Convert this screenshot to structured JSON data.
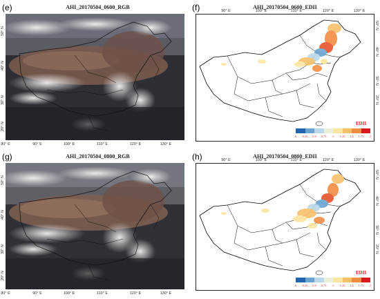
{
  "panels": {
    "e": {
      "label": "(e)",
      "title": "AHI_20170504_0600_RGB",
      "kind": "rgb"
    },
    "f": {
      "label": "(f)",
      "title": "AHI_20170504_0600_EDII",
      "kind": "edii"
    },
    "g": {
      "label": "(g)",
      "title": "AHI_20170504_0800_RGB",
      "kind": "rgb"
    },
    "h": {
      "label": "(h)",
      "title": "AHI_20170504_0800_EDII",
      "kind": "edii"
    }
  },
  "axes": {
    "rgb_lon_ticks": [
      "80° E",
      "90° E",
      "100° E",
      "110° E",
      "120° E",
      "130° E"
    ],
    "edii_lon_ticks": [
      "90° E",
      "100° E",
      "110° E",
      "120° E",
      "130° E"
    ],
    "lat_ticks": [
      "20° N",
      "30° N",
      "40° N",
      "50° N"
    ]
  },
  "legend": {
    "title": "EDII",
    "ticks": [
      "0",
      "0.25",
      "0.5",
      "0.75",
      "1",
      "1.25",
      "1.5",
      "1.75",
      "2"
    ],
    "colors": [
      "#2166ac",
      "#6aa4d1",
      "#b9d8ea",
      "#e9f2d8",
      "#fde6a0",
      "#f7c06b",
      "#f28c43",
      "#e8532b",
      "#d7191c"
    ]
  }
}
